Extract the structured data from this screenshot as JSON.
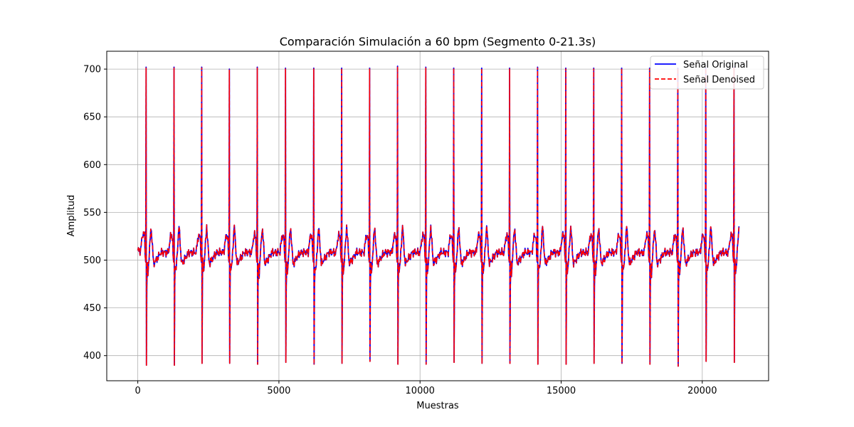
{
  "chart_data": {
    "type": "line",
    "title": "Comparación Simulación a 60 bpm (Segmento 0-21.3s)",
    "xlabel": "Muestras",
    "ylabel": "Amplitud",
    "xlim": [
      -1100,
      22350
    ],
    "ylim": [
      373.7,
      718.7
    ],
    "x_ticks": [
      0,
      5000,
      10000,
      15000,
      20000
    ],
    "x_tick_labels": [
      "0",
      "5000",
      "10000",
      "15000",
      "20000"
    ],
    "y_ticks": [
      400,
      450,
      500,
      550,
      600,
      650,
      700
    ],
    "y_tick_labels": [
      "400",
      "450",
      "500",
      "550",
      "600",
      "650",
      "700"
    ],
    "grid": true,
    "legend_position": "top-right",
    "sample_range": [
      0,
      21300
    ],
    "beat_x": [
      300,
      1290,
      2270,
      3250,
      4240,
      5240,
      6240,
      7230,
      8220,
      9210,
      10210,
      11200,
      12190,
      13180,
      14170,
      15170,
      16160,
      17150,
      18140,
      19140,
      20130,
      21130
    ],
    "r_peaks": [
      702,
      702,
      702,
      700,
      702,
      701,
      701,
      701,
      701,
      703,
      702,
      701,
      701,
      701,
      702,
      701,
      701,
      701,
      701,
      701,
      701,
      702
    ],
    "s_troughs": [
      390,
      390,
      392,
      392,
      391,
      393,
      391,
      392,
      394,
      391,
      391,
      393,
      392,
      392,
      391,
      391,
      392,
      392,
      391,
      389,
      394,
      393
    ],
    "series": [
      {
        "name": "Señal Original",
        "color": "#0000ff",
        "style": "solid"
      },
      {
        "name": "Señal Denoised",
        "color": "#ff0000",
        "style": "dashed"
      }
    ]
  }
}
